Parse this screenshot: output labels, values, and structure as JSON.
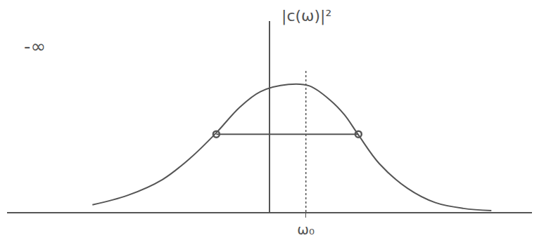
{
  "chart_data": {
    "type": "line",
    "x": [
      -2.53,
      -2.03,
      -1.53,
      -1.13,
      -0.76,
      -0.43,
      -0.13,
      0.27,
      0.57,
      0.87,
      1.07,
      1.27,
      1.57,
      1.97,
      2.37,
      2.77,
      3.17
    ],
    "values": [
      0.1,
      0.23,
      0.45,
      0.75,
      1.1,
      1.45,
      1.67,
      1.77,
      1.75,
      1.55,
      1.35,
      1.07,
      0.67,
      0.33,
      0.13,
      0.05,
      0.02
    ],
    "color": "#555555",
    "half_width_line": {
      "x": [
        -0.76,
        1.27
      ],
      "values": [
        1.08,
        1.08
      ],
      "marker": "circle-open"
    },
    "annotations": [
      "|c(ω)|²",
      "-∞"
    ],
    "xlim": [
      -3.75,
      3.75
    ],
    "ylim": [
      0,
      2.65
    ],
    "xticks": [
      {
        "value": 0.52,
        "label": "ω₀"
      }
    ],
    "yticks": [],
    "tick_labels": "x",
    "grid": false
  }
}
